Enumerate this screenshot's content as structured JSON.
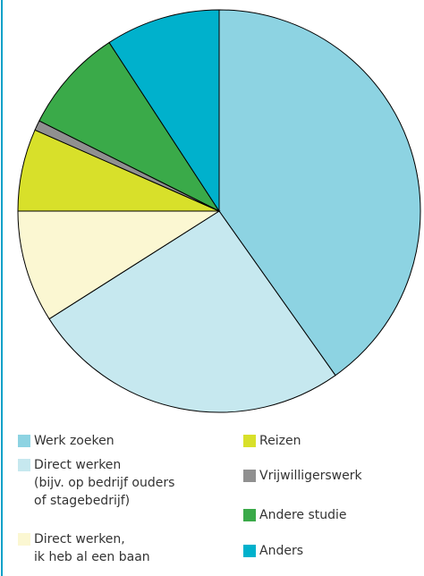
{
  "chart_data": {
    "type": "pie",
    "categories": [
      [
        "Werk zoeken"
      ],
      [
        "Direct werken",
        "(bijv. op bedrijf ouders",
        "of stagebedrijf)"
      ],
      [
        "Direct werken,",
        "ik heb al een baan"
      ],
      [
        "Reizen"
      ],
      [
        "Vrijwilligerswerk"
      ],
      [
        "Andere studie"
      ],
      [
        "Anders"
      ]
    ],
    "values": [
      40.2,
      25.8,
      9.0,
      6.6,
      0.8,
      8.4,
      9.2
    ],
    "colors": [
      "#8dd3e2",
      "#c6e8ef",
      "#fbf7d2",
      "#d8e02a",
      "#909090",
      "#3aaa49",
      "#00b1cc"
    ]
  }
}
